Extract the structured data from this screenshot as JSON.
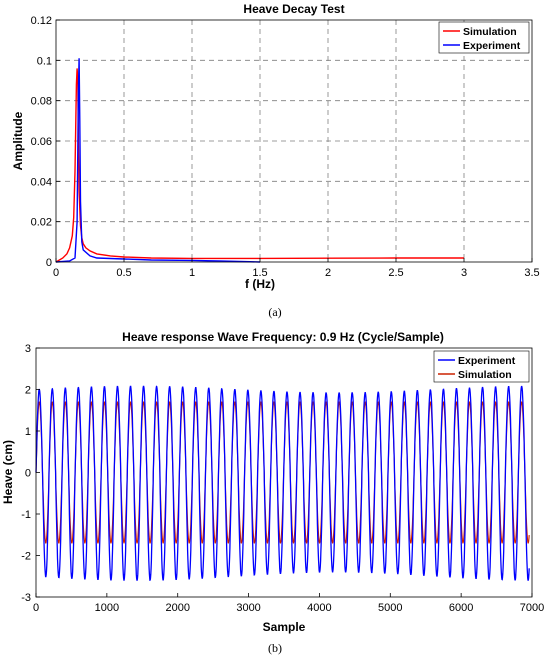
{
  "chart_data": [
    {
      "type": "line",
      "title": "Heave Decay Test",
      "xlabel": "f (Hz)",
      "ylabel": "Amplitude",
      "xlim": [
        0,
        3.5
      ],
      "ylim": [
        0,
        0.12
      ],
      "grid": true,
      "legend_position": "top-right",
      "xticks": [
        "0",
        "0.5",
        "1",
        "1.5",
        "2",
        "2.5",
        "3",
        "3.5"
      ],
      "yticks": [
        "0",
        "0.02",
        "0.04",
        "0.06",
        "0.08",
        "0.1",
        "0.12"
      ],
      "caption": "(a)",
      "series": [
        {
          "name": "Simulation",
          "color": "#ff0000",
          "x": [
            0,
            0.05,
            0.08,
            0.1,
            0.12,
            0.13,
            0.14,
            0.15,
            0.155,
            0.16,
            0.165,
            0.17,
            0.18,
            0.19,
            0.2,
            0.22,
            0.25,
            0.3,
            0.4,
            0.5,
            0.7,
            1.0,
            1.5,
            2.0,
            2.5,
            3.0
          ],
          "y": [
            0,
            0.002,
            0.004,
            0.007,
            0.013,
            0.022,
            0.045,
            0.088,
            0.096,
            0.09,
            0.06,
            0.035,
            0.018,
            0.012,
            0.009,
            0.007,
            0.0055,
            0.004,
            0.003,
            0.0025,
            0.002,
            0.0018,
            0.0018,
            0.0019,
            0.002,
            0.002
          ]
        },
        {
          "name": "Experiment",
          "color": "#0000ff",
          "x": [
            0,
            0.1,
            0.14,
            0.155,
            0.165,
            0.17,
            0.175,
            0.18,
            0.19,
            0.2,
            0.25,
            0.3,
            0.5,
            0.7,
            1.0,
            1.2,
            1.5
          ],
          "y": [
            0,
            0.0005,
            0.002,
            0.02,
            0.085,
            0.101,
            0.07,
            0.03,
            0.01,
            0.006,
            0.003,
            0.002,
            0.0015,
            0.001,
            0.0008,
            0.0005,
            0
          ]
        }
      ]
    },
    {
      "type": "line",
      "title": "Heave response Wave Frequency: 0.9 Hz (Cycle/Sample)",
      "xlabel": "Sample",
      "ylabel": "Heave (cm)",
      "xlim": [
        0,
        7000
      ],
      "ylim": [
        -3,
        3
      ],
      "grid": false,
      "legend_position": "top-right",
      "xticks": [
        "0",
        "1000",
        "2000",
        "3000",
        "4000",
        "5000",
        "6000",
        "7000"
      ],
      "yticks": [
        "-3",
        "-2",
        "-1",
        "0",
        "1",
        "2",
        "3"
      ],
      "caption": "(b)",
      "series": [
        {
          "name": "Experiment",
          "color": "#0000ff",
          "period_samples": 184,
          "x_start": 0,
          "x_end": 6960,
          "peak_max": 2.0,
          "trough_min": -2.5
        },
        {
          "name": "Simulation",
          "color": "#cc2200",
          "period_samples": 184,
          "x_start": 0,
          "x_end": 6960,
          "peak_max": 1.7,
          "trough_min": -1.7
        }
      ]
    }
  ]
}
